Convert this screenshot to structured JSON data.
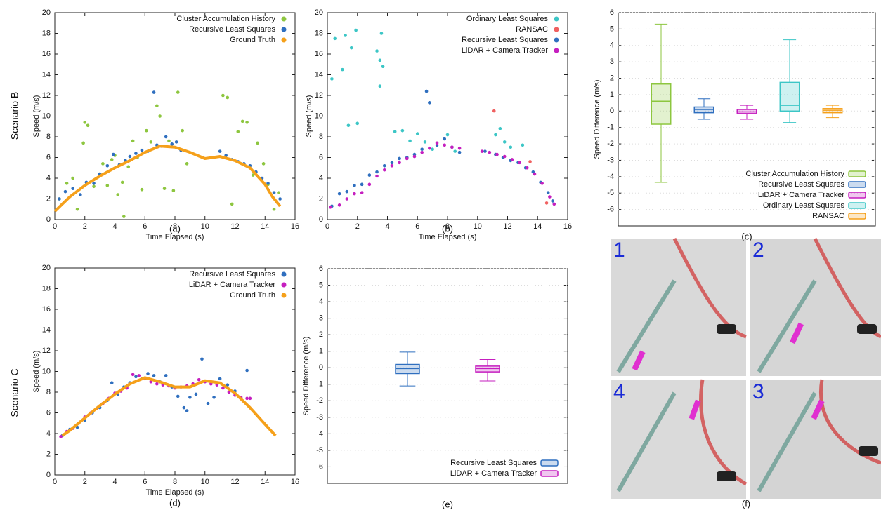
{
  "row_labels": [
    "Scenario B",
    "Scenario C"
  ],
  "panel_f": {
    "caption": "(f)",
    "labels": [
      "1",
      "2",
      "4",
      "3"
    ]
  },
  "chart_data": [
    {
      "type": "scatter",
      "caption": "(a)",
      "x_label": "Time Elapsed (s)",
      "y_label": "Speed (m/s)",
      "xlim": [
        0,
        16
      ],
      "ylim": [
        0,
        20
      ],
      "xticks": [
        0,
        2,
        4,
        6,
        8,
        10,
        12,
        14,
        16
      ],
      "yticks": [
        0,
        2,
        4,
        6,
        8,
        10,
        12,
        14,
        16,
        18,
        20
      ],
      "legend": "top-right",
      "series": [
        {
          "name": "Cluster Accumulation History",
          "color": "#8dc63f",
          "mode": "markers",
          "x": [
            0.3,
            0.8,
            1.2,
            1.5,
            1.9,
            2.0,
            2.2,
            2.6,
            3.0,
            3.2,
            3.5,
            3.8,
            4.0,
            4.2,
            4.5,
            4.6,
            4.9,
            5.2,
            5.5,
            5.8,
            6.1,
            6.4,
            6.8,
            7.0,
            7.3,
            7.6,
            7.9,
            8.2,
            8.5,
            8.8,
            11.2,
            11.5,
            11.8,
            12.2,
            12.5,
            12.8,
            13.2,
            13.5,
            13.9,
            14.2,
            14.6,
            14.9
          ],
          "values": [
            2.0,
            3.5,
            4.0,
            1.0,
            7.4,
            9.4,
            9.1,
            3.2,
            4.4,
            5.4,
            3.3,
            5.8,
            6.2,
            2.4,
            3.6,
            0.3,
            5.1,
            7.6,
            6.0,
            2.9,
            8.6,
            7.5,
            11.0,
            10.0,
            3.0,
            7.6,
            2.8,
            12.3,
            8.6,
            5.4,
            12.0,
            11.8,
            1.5,
            8.5,
            9.5,
            9.4,
            4.3,
            7.4,
            5.4,
            3.4,
            1.0,
            2.6
          ]
        },
        {
          "name": "Recursive Least Squares",
          "color": "#2f6fbf",
          "mode": "markers",
          "x": [
            0.3,
            0.7,
            1.2,
            1.7,
            2.1,
            2.6,
            3.0,
            3.5,
            3.9,
            4.3,
            4.7,
            5.0,
            5.4,
            5.8,
            6.2,
            6.6,
            6.8,
            7.1,
            7.4,
            7.8,
            8.1,
            8.4,
            11.0,
            11.4,
            11.8,
            12.2,
            12.6,
            13.0,
            13.4,
            13.8,
            14.2,
            14.6,
            15.0
          ],
          "values": [
            2.0,
            2.7,
            3.0,
            2.4,
            3.6,
            3.5,
            4.4,
            5.2,
            6.3,
            5.3,
            5.7,
            6.1,
            6.4,
            6.7,
            6.6,
            12.3,
            7.2,
            7.1,
            8.0,
            7.3,
            7.5,
            6.7,
            6.6,
            6.2,
            5.8,
            5.6,
            5.4,
            5.2,
            4.6,
            4.0,
            3.5,
            2.6,
            2.0
          ]
        },
        {
          "name": "Ground Truth",
          "color": "#f5a01a",
          "mode": "line",
          "x": [
            0,
            1,
            2,
            3,
            4,
            5,
            6,
            7,
            8,
            9,
            10,
            11,
            12,
            13,
            14,
            14.5,
            15
          ],
          "values": [
            0.8,
            2.2,
            3.3,
            4.2,
            5.0,
            5.7,
            6.5,
            7.1,
            7.0,
            6.5,
            5.9,
            6.1,
            5.7,
            5.0,
            3.4,
            2.2,
            1.3
          ]
        }
      ]
    },
    {
      "type": "scatter",
      "caption": "(b)",
      "x_label": "Time Elapsed (s)",
      "y_label": "Speed (m/s)",
      "xlim": [
        0,
        16
      ],
      "ylim": [
        0,
        20
      ],
      "xticks": [
        0,
        2,
        4,
        6,
        8,
        10,
        12,
        14,
        16
      ],
      "yticks": [
        0,
        2,
        4,
        6,
        8,
        10,
        12,
        14,
        16,
        18,
        20
      ],
      "legend": "top-right",
      "series": [
        {
          "name": "Ordinary Least Squares",
          "color": "#3cc6c6",
          "mode": "markers",
          "x": [
            0.3,
            0.5,
            1.0,
            1.2,
            1.4,
            1.6,
            1.9,
            2.0,
            3.3,
            3.5,
            3.5,
            3.6,
            3.7,
            4.5,
            5.0,
            5.5,
            6.0,
            6.5,
            7.0,
            8.0,
            8.5,
            11.2,
            11.5,
            11.8,
            12.2,
            13.0
          ],
          "values": [
            13.6,
            17.5,
            14.5,
            17.8,
            9.1,
            16.6,
            18.3,
            9.3,
            16.3,
            15.4,
            12.9,
            18.0,
            14.8,
            8.5,
            8.6,
            7.6,
            8.3,
            7.5,
            6.8,
            8.2,
            6.6,
            8.2,
            8.8,
            7.5,
            7.0,
            7.2
          ]
        },
        {
          "name": "RANSAC",
          "color": "#f06060",
          "mode": "markers",
          "x": [
            11.1,
            13.5,
            14.6
          ],
          "values": [
            10.5,
            5.6,
            1.6
          ]
        },
        {
          "name": "Recursive Least Squares",
          "color": "#2f6fbf",
          "mode": "markers",
          "x": [
            0.3,
            0.8,
            1.3,
            1.8,
            2.3,
            2.8,
            3.3,
            3.8,
            4.3,
            4.8,
            5.3,
            5.8,
            6.3,
            6.6,
            6.8,
            7.3,
            7.8,
            8.3,
            8.8,
            10.5,
            11.2,
            11.7,
            12.2,
            12.7,
            13.2,
            13.7,
            14.2,
            14.7,
            15.0
          ],
          "values": [
            1.3,
            2.5,
            2.7,
            3.3,
            3.4,
            4.3,
            4.6,
            5.2,
            5.5,
            5.9,
            6.0,
            6.3,
            6.8,
            12.4,
            11.3,
            7.2,
            7.8,
            7.0,
            6.5,
            6.6,
            6.3,
            6.0,
            5.7,
            5.5,
            5.0,
            4.6,
            3.6,
            2.6,
            1.8
          ]
        },
        {
          "name": "LiDAR + Camera Tracker",
          "color": "#c51fbf",
          "mode": "markers",
          "x": [
            0.2,
            0.8,
            1.3,
            1.8,
            2.3,
            2.8,
            3.3,
            3.8,
            4.3,
            4.8,
            5.3,
            5.8,
            6.3,
            6.8,
            7.3,
            7.8,
            8.3,
            8.8,
            10.3,
            10.8,
            11.3,
            11.8,
            12.3,
            12.8,
            13.3,
            13.8,
            14.3,
            14.8,
            15.1
          ],
          "values": [
            1.2,
            1.4,
            2.0,
            2.5,
            2.6,
            3.4,
            4.2,
            4.8,
            5.2,
            5.5,
            5.9,
            6.1,
            6.5,
            6.9,
            7.4,
            7.2,
            7.0,
            6.9,
            6.6,
            6.5,
            6.3,
            6.1,
            5.8,
            5.5,
            5.0,
            4.4,
            3.5,
            2.2,
            1.5
          ]
        }
      ]
    },
    {
      "type": "box",
      "caption": "(c)",
      "y_label": "Speed Difference (m/s)",
      "ylim": [
        -7,
        6
      ],
      "yticks": [
        -6,
        -5,
        -4,
        -3,
        -2,
        -1,
        0,
        1,
        2,
        3,
        4,
        5,
        6
      ],
      "legend": "bottom-right",
      "series": [
        {
          "name": "Cluster Accumulation History",
          "color": "#8dc63f",
          "low": -4.35,
          "q1": -0.8,
          "median": 0.6,
          "q3": 1.65,
          "high": 5.3
        },
        {
          "name": "Recursive Least Squares",
          "color": "#2f6fbf",
          "low": -0.5,
          "q1": -0.1,
          "median": 0.1,
          "q3": 0.25,
          "high": 0.75
        },
        {
          "name": "LiDAR + Camera Tracker",
          "color": "#c51fbf",
          "low": -0.5,
          "q1": -0.15,
          "median": -0.05,
          "q3": 0.1,
          "high": 0.35
        },
        {
          "name": "Ordinary Least Squares",
          "color": "#3cc6c6",
          "low": -0.7,
          "q1": 0,
          "median": 0.35,
          "q3": 1.75,
          "high": 4.35
        },
        {
          "name": "RANSAC",
          "color": "#f5a01a",
          "low": -0.4,
          "q1": -0.1,
          "median": 0.05,
          "q3": 0.15,
          "high": 0.35
        }
      ]
    },
    {
      "type": "scatter",
      "caption": "(d)",
      "x_label": "Time Elapsed (s)",
      "y_label": "Speed (m/s)",
      "xlim": [
        0,
        16
      ],
      "ylim": [
        0,
        20
      ],
      "xticks": [
        0,
        2,
        4,
        6,
        8,
        10,
        12,
        14,
        16
      ],
      "yticks": [
        0,
        2,
        4,
        6,
        8,
        10,
        12,
        14,
        16,
        18,
        20
      ],
      "legend": "top-right",
      "series": [
        {
          "name": "Recursive Least Squares",
          "color": "#2f6fbf",
          "mode": "markers",
          "x": [
            0.5,
            1.0,
            1.5,
            2.0,
            2.5,
            3.0,
            3.5,
            3.8,
            4.2,
            4.6,
            5.0,
            5.4,
            5.8,
            6.2,
            6.6,
            7.0,
            7.4,
            7.8,
            8.2,
            8.6,
            8.8,
            9.0,
            9.4,
            9.8,
            10.2,
            10.6,
            11.0,
            11.5,
            12.0,
            12.8
          ],
          "values": [
            3.8,
            4.4,
            4.6,
            5.3,
            6.0,
            6.5,
            7.2,
            8.9,
            7.8,
            8.5,
            8.9,
            9.5,
            9.3,
            9.8,
            9.6,
            9.0,
            9.6,
            8.5,
            7.6,
            6.5,
            6.2,
            7.5,
            7.8,
            11.2,
            6.9,
            7.5,
            9.3,
            8.7,
            8.1,
            10.1
          ]
        },
        {
          "name": "LiDAR + Camera Tracker",
          "color": "#c51fbf",
          "mode": "markers",
          "x": [
            0.4,
            0.8,
            1.2,
            1.6,
            2.0,
            2.4,
            2.8,
            3.2,
            3.6,
            4.0,
            4.4,
            4.8,
            5.2,
            5.6,
            6.0,
            6.4,
            6.8,
            7.2,
            7.6,
            8.0,
            8.4,
            8.8,
            9.2,
            9.6,
            10.0,
            10.4,
            10.8,
            11.2,
            11.6,
            12.0,
            12.4,
            12.8,
            13.0
          ],
          "values": [
            3.7,
            4.2,
            4.5,
            5.0,
            5.6,
            6.0,
            6.4,
            6.9,
            7.4,
            7.9,
            8.1,
            8.4,
            9.7,
            9.6,
            9.3,
            9.0,
            8.8,
            8.7,
            8.6,
            8.4,
            8.5,
            8.6,
            8.8,
            9.2,
            9.0,
            8.8,
            8.7,
            8.4,
            8.0,
            7.7,
            7.5,
            7.4,
            7.4
          ]
        },
        {
          "name": "Ground Truth",
          "color": "#f5a01a",
          "mode": "line",
          "x": [
            0.5,
            1,
            2,
            3,
            4,
            5,
            6,
            7,
            8,
            9,
            10,
            11,
            12,
            13,
            14,
            14.7
          ],
          "values": [
            3.8,
            4.3,
            5.5,
            6.7,
            7.8,
            8.8,
            9.4,
            9.0,
            8.5,
            8.5,
            9.1,
            8.9,
            7.9,
            6.5,
            4.9,
            3.8
          ]
        }
      ]
    },
    {
      "type": "box",
      "caption": "(e)",
      "y_label": "Speed Difference (m/s)",
      "ylim": [
        -7,
        6
      ],
      "yticks": [
        -6,
        -5,
        -4,
        -3,
        -2,
        -1,
        0,
        1,
        2,
        3,
        4,
        5,
        6
      ],
      "legend": "bottom-right",
      "series": [
        {
          "name": "Recursive Least Squares",
          "color": "#2f6fbf",
          "low": -1.1,
          "q1": -0.35,
          "median": -0.05,
          "q3": 0.2,
          "high": 0.95
        },
        {
          "name": "LiDAR + Camera Tracker",
          "color": "#c51fbf",
          "low": -0.8,
          "q1": -0.25,
          "median": -0.05,
          "q3": 0.1,
          "high": 0.5
        }
      ]
    }
  ]
}
